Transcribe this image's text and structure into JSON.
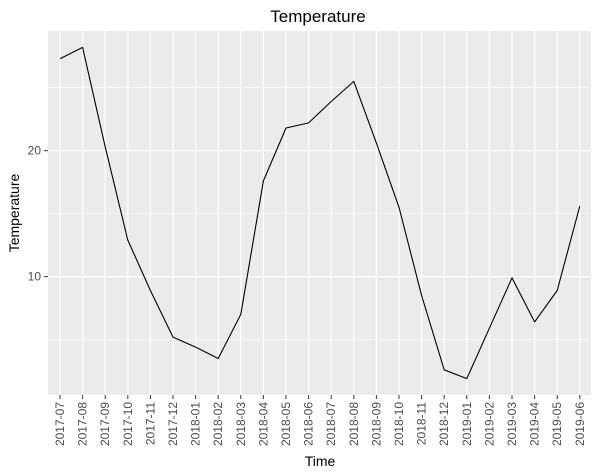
{
  "chart_data": {
    "type": "line",
    "title": "Temperature",
    "xlabel": "Time",
    "ylabel": "Temperature",
    "x": [
      "2017-07",
      "2017-08",
      "2017-09",
      "2017-10",
      "2017-11",
      "2017-12",
      "2018-01",
      "2018-02",
      "2018-03",
      "2018-04",
      "2018-05",
      "2018-06",
      "2018-07",
      "2018-08",
      "2018-09",
      "2018-10",
      "2018-11",
      "2018-12",
      "2019-01",
      "2019-02",
      "2019-03",
      "2019-04",
      "2019-05",
      "2019-06"
    ],
    "series": [
      {
        "values": [
          27.3,
          28.2,
          20.3,
          12.9,
          8.9,
          5.2,
          4.4,
          3.5,
          7.0,
          17.6,
          21.8,
          22.2,
          23.9,
          25.5,
          20.6,
          15.5,
          8.5,
          2.6,
          1.9,
          5.9,
          9.9,
          6.4,
          8.9,
          15.6
        ],
        "color": "#000000"
      }
    ],
    "y_ticks": [
      10,
      20
    ],
    "ylim": [
      0.6,
      29.5
    ],
    "grid": true,
    "panel_background": "#ebebeb",
    "grid_color": "#ffffff"
  }
}
